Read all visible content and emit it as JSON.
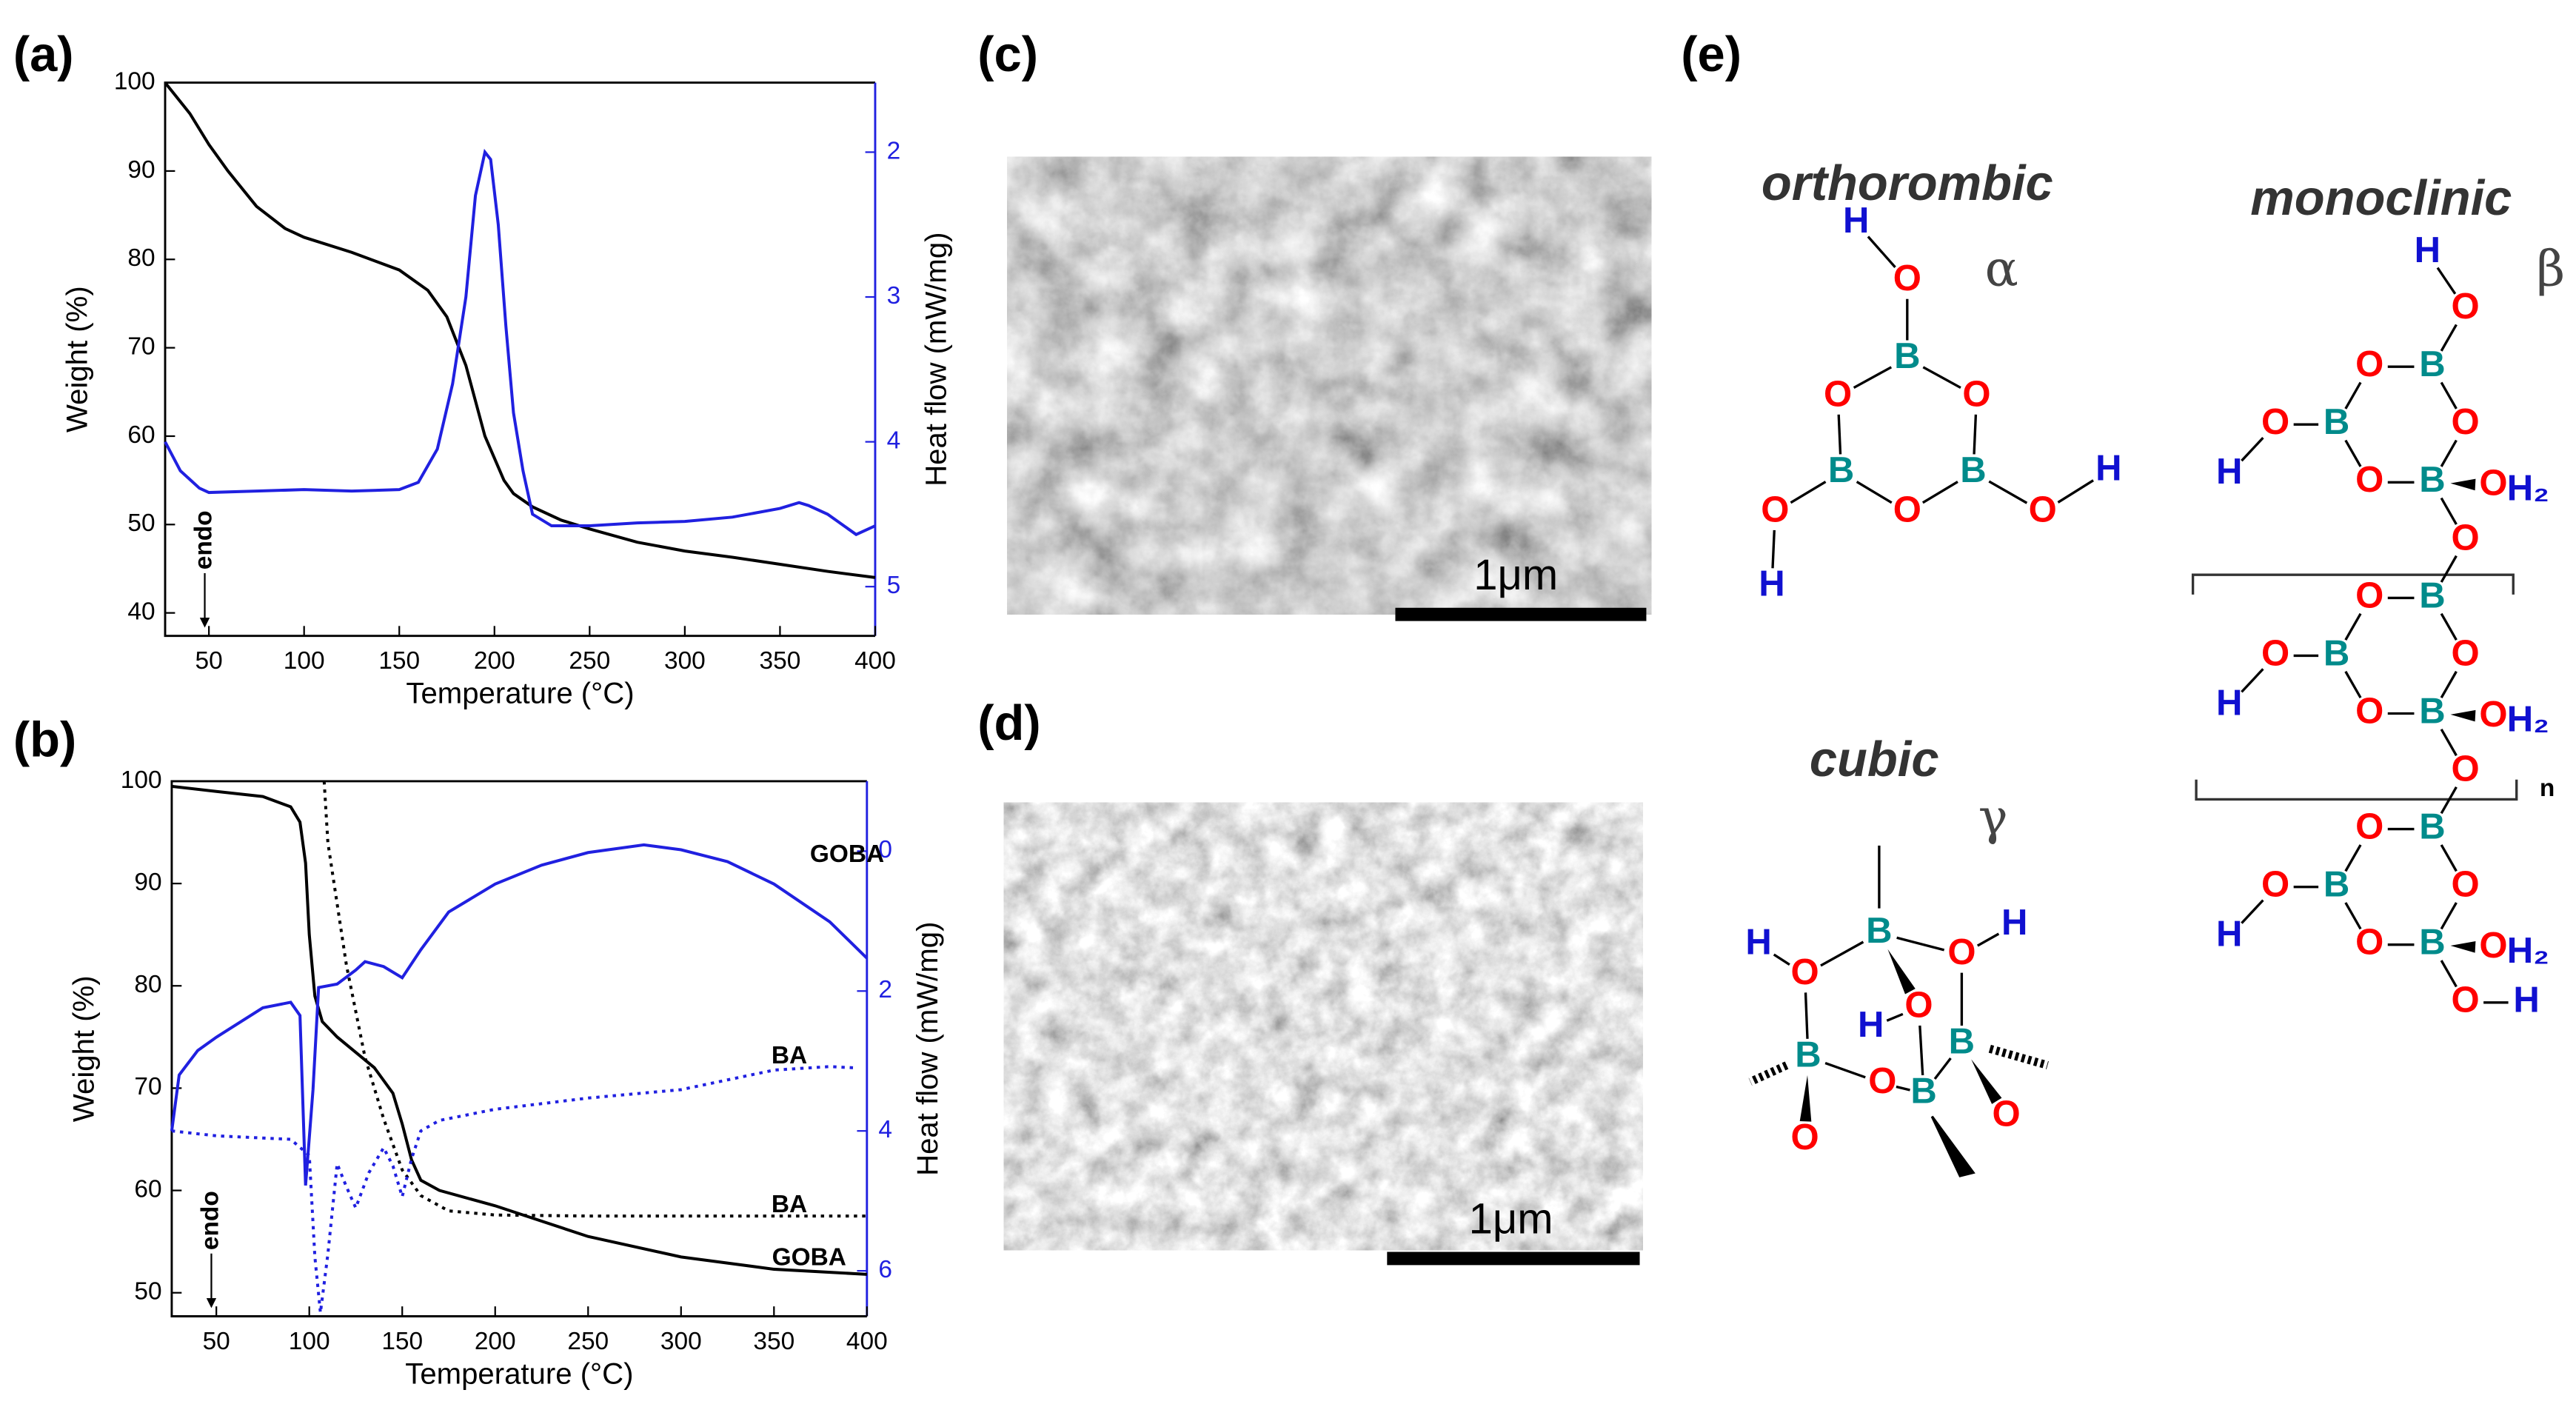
{
  "chart_data": [
    {
      "type": "line",
      "panel_label": "(a)",
      "x_label": "Temperature (°C)",
      "y_label": "Weight (%)",
      "y2_label": "Heat flow (mW/mg)",
      "annotation": "endo",
      "y2_color": "#2020e0",
      "xlim": [
        27,
        400
      ],
      "xticks": [
        50,
        100,
        150,
        200,
        250,
        300,
        350,
        400
      ],
      "ylim": [
        37.4,
        100
      ],
      "yticks": [
        40,
        50,
        60,
        70,
        80,
        90,
        100
      ],
      "y2lim": [
        5.34,
        1.52
      ],
      "y2ticks": [
        2,
        3,
        4,
        5
      ],
      "series": [
        {
          "color": "#000000",
          "dash": "solid",
          "x": [
            27,
            40,
            50,
            60,
            75,
            90,
            100,
            125,
            150,
            165,
            175,
            185,
            190,
            195,
            200,
            205,
            210,
            220,
            235,
            250,
            275,
            300,
            325,
            350,
            375,
            400
          ],
          "values": [
            100,
            96.5,
            93,
            90,
            86,
            83.5,
            82.5,
            80.8,
            78.8,
            76.5,
            73.5,
            68,
            64,
            60,
            57.5,
            55,
            53.5,
            52,
            50.5,
            49.5,
            48,
            47,
            46.3,
            45.5,
            44.7,
            44
          ]
        },
        {
          "color": "#2020e0",
          "dash": "solid",
          "axis": "y2",
          "x": [
            27,
            35,
            45,
            50,
            75,
            100,
            125,
            150,
            160,
            170,
            178,
            185,
            190,
            195,
            198,
            202,
            206,
            210,
            215,
            220,
            230,
            250,
            275,
            300,
            325,
            350,
            360,
            365,
            375,
            390,
            400
          ],
          "values": [
            4.0,
            4.2,
            4.32,
            4.35,
            4.34,
            4.33,
            4.34,
            4.33,
            4.28,
            4.05,
            3.6,
            3.0,
            2.3,
            2.0,
            2.05,
            2.5,
            3.2,
            3.8,
            4.2,
            4.5,
            4.58,
            4.58,
            4.56,
            4.55,
            4.52,
            4.46,
            4.42,
            4.44,
            4.5,
            4.64,
            4.58
          ]
        }
      ]
    },
    {
      "type": "line",
      "panel_label": "(b)",
      "x_label": "Temperature (°C)",
      "y_label": "Weight (%)",
      "y2_label": "Heat flow (mW/mg)",
      "annotation": "endo",
      "y2_color": "#2020e0",
      "xlim": [
        26,
        400
      ],
      "xticks": [
        50,
        100,
        150,
        200,
        250,
        300,
        350,
        400
      ],
      "ylim": [
        47.7,
        100
      ],
      "yticks": [
        50,
        60,
        70,
        80,
        90,
        100
      ],
      "y2lim": [
        6.65,
        -1
      ],
      "y2ticks": [
        0,
        2,
        4,
        6
      ],
      "series": [
        {
          "name": "GOBA",
          "color": "#000000",
          "dash": "solid",
          "x": [
            26,
            50,
            75,
            90,
            95,
            98,
            100,
            103,
            107,
            115,
            125,
            135,
            145,
            150,
            155,
            160,
            170,
            200,
            250,
            300,
            350,
            400
          ],
          "values": [
            99.5,
            99,
            98.5,
            97.5,
            96,
            92,
            85,
            79,
            76.5,
            75,
            73.5,
            72,
            69.5,
            66.5,
            63,
            61,
            60,
            58.5,
            55.5,
            53.5,
            52.3,
            51.8
          ]
        },
        {
          "name": "BA",
          "color": "#000000",
          "dash": "dotted",
          "x": [
            108,
            110,
            115,
            120,
            130,
            140,
            150,
            160,
            175,
            200,
            250,
            300,
            400
          ],
          "values": [
            100,
            94,
            88,
            82,
            73,
            67,
            62,
            59.5,
            58,
            57.6,
            57.5,
            57.5,
            57.5
          ]
        },
        {
          "name": "GOBA",
          "color": "#2020e0",
          "dash": "solid",
          "axis": "y2",
          "x": [
            26,
            30,
            40,
            50,
            75,
            90,
            95,
            98,
            100,
            102,
            105,
            115,
            125,
            130,
            140,
            150,
            160,
            175,
            200,
            225,
            250,
            280,
            300,
            325,
            350,
            380,
            400
          ],
          "values": [
            4.0,
            3.2,
            2.85,
            2.66,
            2.24,
            2.16,
            2.35,
            4.78,
            4.1,
            3.41,
            1.95,
            1.9,
            1.7,
            1.58,
            1.65,
            1.81,
            1.41,
            0.87,
            0.47,
            0.2,
            0.02,
            -0.09,
            -0.02,
            0.15,
            0.47,
            1.01,
            1.53
          ]
        },
        {
          "name": "BA",
          "color": "#2020e0",
          "dash": "dotted",
          "axis": "y2",
          "x": [
            26,
            50,
            90,
            100,
            103,
            106,
            110,
            115,
            120,
            125,
            132,
            140,
            145,
            150,
            155,
            160,
            170,
            200,
            250,
            300,
            350,
            380,
            395
          ],
          "values": [
            4.0,
            4.07,
            4.12,
            4.35,
            5.8,
            6.6,
            5.76,
            4.47,
            4.8,
            5.1,
            4.6,
            4.24,
            4.5,
            4.94,
            4.4,
            4.0,
            3.85,
            3.69,
            3.53,
            3.41,
            3.13,
            3.08,
            3.1
          ]
        }
      ]
    }
  ],
  "images": [
    {
      "panel_label": "(c)",
      "scale_bar": "1μm"
    },
    {
      "panel_label": "(d)",
      "scale_bar": "1μm"
    }
  ],
  "structures_panel_label": "(e)",
  "structures": [
    {
      "name": "orthorombic",
      "symbol": "α",
      "atoms": [
        "H",
        "O",
        "B",
        "O",
        "O",
        "B",
        "B",
        "O",
        "O",
        "H",
        "O",
        "H"
      ]
    },
    {
      "name": "monoclinic",
      "symbol": "β",
      "repeat": "n",
      "atoms": [
        "H",
        "O",
        "B",
        "O",
        "O",
        "B",
        "O",
        "H",
        "O",
        "B",
        "O",
        "H₂",
        "O",
        "B",
        "O",
        "O",
        "B",
        "O",
        "H",
        "O",
        "B",
        "O",
        "H₂",
        "O",
        "B",
        "O",
        "O",
        "B",
        "O",
        "H",
        "O",
        "B",
        "O",
        "H₂",
        "O",
        "H"
      ]
    },
    {
      "name": "cubic",
      "symbol": "γ",
      "atoms": [
        "H",
        "O",
        "B",
        "O",
        "H",
        "H",
        "O",
        "B",
        "B",
        "O",
        "B",
        "O",
        "O"
      ]
    }
  ]
}
